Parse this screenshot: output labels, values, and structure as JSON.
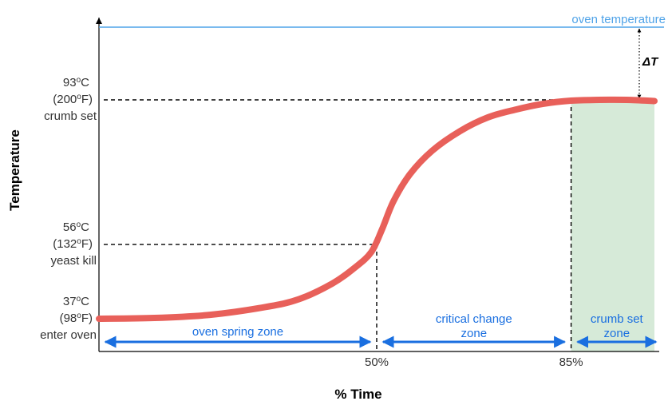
{
  "chart_data": {
    "type": "line",
    "title": "",
    "xlabel": "% Time",
    "ylabel": "Temperature",
    "xlim": [
      0,
      100
    ],
    "series": [
      {
        "x": [
          0,
          10,
          20,
          30,
          36,
          42,
          46,
          49,
          51,
          53,
          56,
          60,
          65,
          70,
          75,
          80,
          85,
          90,
          95,
          100
        ],
        "y": [
          37,
          37.2,
          38,
          40,
          42,
          46,
          50,
          54,
          60,
          67,
          74,
          80,
          85,
          88.5,
          90.5,
          92,
          92.8,
          93,
          93,
          92.7
        ]
      }
    ],
    "y_markers": [
      {
        "value": 37,
        "line1": "37°C",
        "line2": "(98°F)",
        "line3": "enter oven"
      },
      {
        "value": 56,
        "line1": "56°C",
        "line2": "(132°F)",
        "line3": "yeast kill"
      },
      {
        "value": 93,
        "line1": "93°C",
        "line2": "(200°F)",
        "line3": "crumb set"
      }
    ],
    "x_ticks": [
      {
        "value": 50,
        "label": "50%"
      },
      {
        "value": 85,
        "label": "85%"
      }
    ],
    "reference_line": {
      "label": "oven temperature",
      "color": "#4fa3e8"
    },
    "delta_label": "ΔT",
    "zones": [
      {
        "from": 0,
        "to": 50,
        "label_lines": [
          "oven spring zone"
        ]
      },
      {
        "from": 50,
        "to": 85,
        "label_lines": [
          "critical change",
          "zone"
        ]
      },
      {
        "from": 85,
        "to": 100,
        "label_lines": [
          "crumb set",
          "zone"
        ]
      }
    ],
    "colors": {
      "curve": "#e8605a",
      "zone_arrow": "#1a6fe0",
      "crumb_zone_fill": "#d6ead8",
      "reference": "#4fa3e8"
    }
  }
}
